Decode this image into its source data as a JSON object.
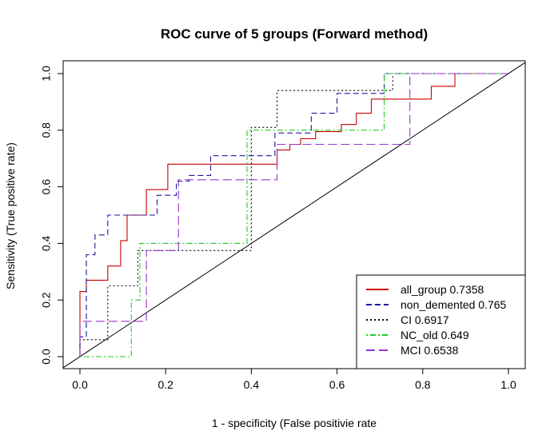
{
  "chart_data": {
    "type": "line",
    "title": "ROC curve of 5 groups (Forward method)",
    "xlabel": "1 - specificity (False positivie rate",
    "ylabel": "Sensitivity (True positive rate)",
    "xlim": [
      0,
      1
    ],
    "ylim": [
      0,
      1
    ],
    "xticks": [
      "0.0",
      "0.2",
      "0.4",
      "0.6",
      "0.8",
      "1.0"
    ],
    "yticks": [
      "0.0",
      "0.2",
      "0.4",
      "0.6",
      "0.8",
      "1.0"
    ],
    "grid": false,
    "legend_position": "bottom-right",
    "reference_line": {
      "x": [
        0,
        1
      ],
      "y": [
        0,
        1
      ],
      "color": "#000000"
    },
    "series": [
      {
        "name": "all_group 0.7358",
        "color": "#cc0000",
        "dash": "solid",
        "x": [
          0,
          0,
          0.015,
          0.015,
          0.065,
          0.065,
          0.095,
          0.095,
          0.11,
          0.11,
          0.155,
          0.155,
          0.205,
          0.205,
          0.46,
          0.46,
          0.49,
          0.49,
          0.515,
          0.515,
          0.55,
          0.55,
          0.61,
          0.61,
          0.645,
          0.645,
          0.68,
          0.68,
          0.72,
          0.72,
          0.82,
          0.82,
          0.875,
          0.875,
          1.0
        ],
        "y": [
          0,
          0.23,
          0.23,
          0.27,
          0.27,
          0.32,
          0.32,
          0.41,
          0.41,
          0.5,
          0.5,
          0.59,
          0.59,
          0.68,
          0.68,
          0.73,
          0.73,
          0.75,
          0.75,
          0.77,
          0.77,
          0.795,
          0.795,
          0.82,
          0.82,
          0.86,
          0.86,
          0.91,
          0.91,
          0.91,
          0.91,
          0.955,
          0.955,
          1.0,
          1.0
        ]
      },
      {
        "name": "non_demented 0.765",
        "color": "#1a1aa0",
        "dash": "dashed",
        "x": [
          0,
          0,
          0.015,
          0.015,
          0.035,
          0.035,
          0.065,
          0.065,
          0.11,
          0.11,
          0.18,
          0.18,
          0.225,
          0.225,
          0.255,
          0.255,
          0.305,
          0.305,
          0.455,
          0.455,
          0.54,
          0.54,
          0.6,
          0.6,
          0.645,
          0.645,
          0.71,
          0.71,
          1.0
        ],
        "y": [
          0,
          0.07,
          0.07,
          0.36,
          0.36,
          0.43,
          0.43,
          0.5,
          0.5,
          0.5,
          0.5,
          0.57,
          0.57,
          0.62,
          0.62,
          0.64,
          0.64,
          0.71,
          0.71,
          0.79,
          0.79,
          0.86,
          0.86,
          0.93,
          0.93,
          0.93,
          0.93,
          1.0,
          1.0
        ]
      },
      {
        "name": "CI 0.6917",
        "color": "#000000",
        "dash": "dotted",
        "x": [
          0,
          0,
          0.065,
          0.065,
          0.135,
          0.135,
          0.4,
          0.4,
          0.46,
          0.46,
          0.715,
          0.715,
          0.73,
          0.73,
          1.0
        ],
        "y": [
          0,
          0.06,
          0.06,
          0.25,
          0.25,
          0.375,
          0.375,
          0.81,
          0.81,
          0.94,
          0.94,
          0.94,
          0.94,
          1.0,
          1.0
        ]
      },
      {
        "name": "NC_old 0.649",
        "color": "#22cc22",
        "dash": "dotdash",
        "x": [
          0,
          0.12,
          0.12,
          0.125,
          0.125,
          0.14,
          0.14,
          0.39,
          0.39,
          0.565,
          0.565,
          0.71,
          0.71,
          1.0
        ],
        "y": [
          0,
          0,
          0.2,
          0.2,
          0.2,
          0.2,
          0.4,
          0.4,
          0.8,
          0.8,
          0.8,
          0.8,
          1.0,
          1.0
        ]
      },
      {
        "name": "MCI 0.6538",
        "color": "#9933cc",
        "dash": "longdash",
        "x": [
          0,
          0,
          0.155,
          0.155,
          0.23,
          0.23,
          0.46,
          0.46,
          0.77,
          0.77,
          1.0
        ],
        "y": [
          0,
          0.125,
          0.125,
          0.375,
          0.375,
          0.625,
          0.625,
          0.75,
          0.75,
          1.0,
          1.0
        ]
      }
    ]
  }
}
